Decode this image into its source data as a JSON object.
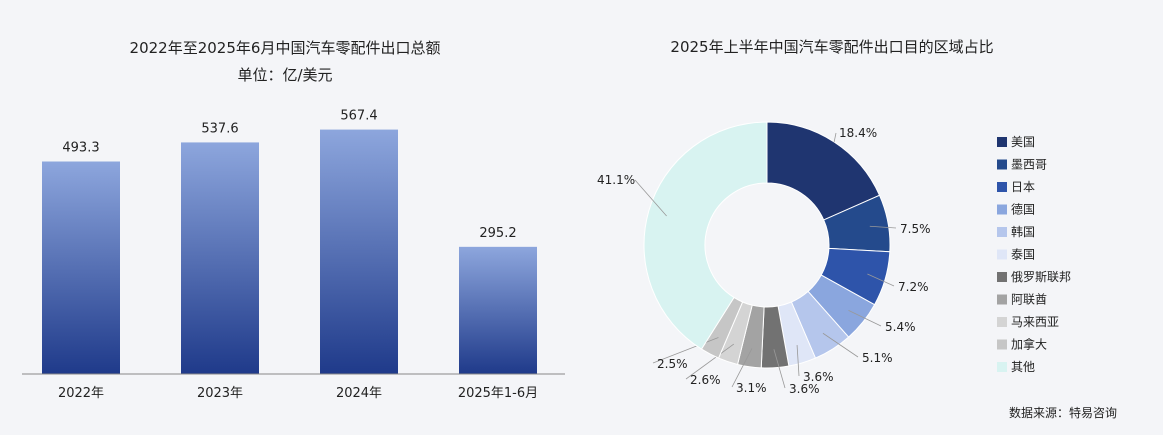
{
  "chart_data": [
    {
      "type": "bar",
      "title": "2022年至2025年6月中国汽车零配件出口总额",
      "subtitle": "单位：亿/美元",
      "categories": [
        "2022年",
        "2023年",
        "2024年",
        "2025年1-6月"
      ],
      "values": [
        493.3,
        537.6,
        567.4,
        295.2
      ],
      "value_labels": [
        "493.3",
        "537.6",
        "567.4",
        "295.2"
      ],
      "ylim": [
        0,
        650
      ],
      "grid": false,
      "bar_gradient": [
        "#8da6dd",
        "#1f3a8a"
      ]
    },
    {
      "type": "pie",
      "subtype": "donut",
      "title": "2025年上半年中国汽车零配件出口目的区域占比",
      "legend_position": "right",
      "labels": [
        "美国",
        "墨西哥",
        "日本",
        "德国",
        "韩国",
        "泰国",
        "俄罗斯联邦",
        "阿联酋",
        "马来西亚",
        "加拿大",
        "其他"
      ],
      "values": [
        18.4,
        7.5,
        7.2,
        5.4,
        5.1,
        3.6,
        3.6,
        3.1,
        2.6,
        2.5,
        41.1
      ],
      "value_labels": [
        "18.4%",
        "7.5%",
        "7.2%",
        "5.4%",
        "5.1%",
        "3.6%",
        "3.6%",
        "3.1%",
        "2.6%",
        "2.5%",
        "41.1%"
      ],
      "colors": [
        "#1f3570",
        "#244a8c",
        "#2e54aa",
        "#8aa6de",
        "#b5c6ec",
        "#dfe6f7",
        "#727272",
        "#a3a3a3",
        "#d4d4d4",
        "#c6c6c6",
        "#d8f3f1"
      ]
    }
  ],
  "footer": {
    "source": "数据来源：特易咨询"
  }
}
